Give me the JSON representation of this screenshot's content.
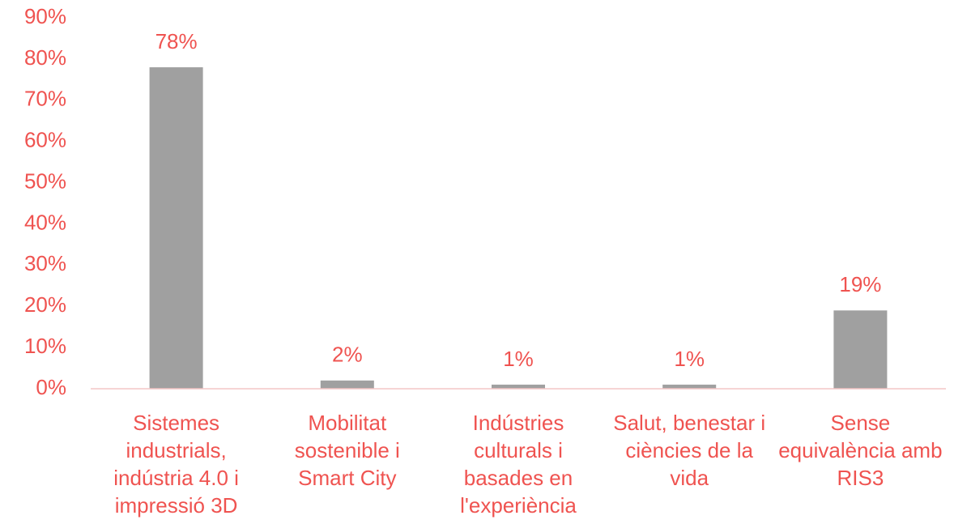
{
  "chart_data": {
    "type": "bar",
    "categories": [
      "Sistemes industrials, indústria 4.0 i impressió 3D",
      "Mobilitat sostenible i Smart City",
      "Indústries culturals i basades en l'experiència",
      "Salut, benestar i ciències de la vida",
      "Sense equivalència amb RIS3"
    ],
    "values": [
      78,
      2,
      1,
      1,
      19
    ],
    "value_labels": [
      "78%",
      "2%",
      "1%",
      "1%",
      "19%"
    ],
    "color": "#a0a0a0",
    "ylim": [
      0,
      90
    ],
    "yticks": [
      {
        "value": 0,
        "label": "0%"
      },
      {
        "value": 10,
        "label": "10%"
      },
      {
        "value": 20,
        "label": "20%"
      },
      {
        "value": 30,
        "label": "30%"
      },
      {
        "value": 40,
        "label": "40%"
      },
      {
        "value": 50,
        "label": "50%"
      },
      {
        "value": 60,
        "label": "60%"
      },
      {
        "value": 70,
        "label": "70%"
      },
      {
        "value": 80,
        "label": "80%"
      },
      {
        "value": 90,
        "label": "90%"
      }
    ],
    "grid": false
  }
}
